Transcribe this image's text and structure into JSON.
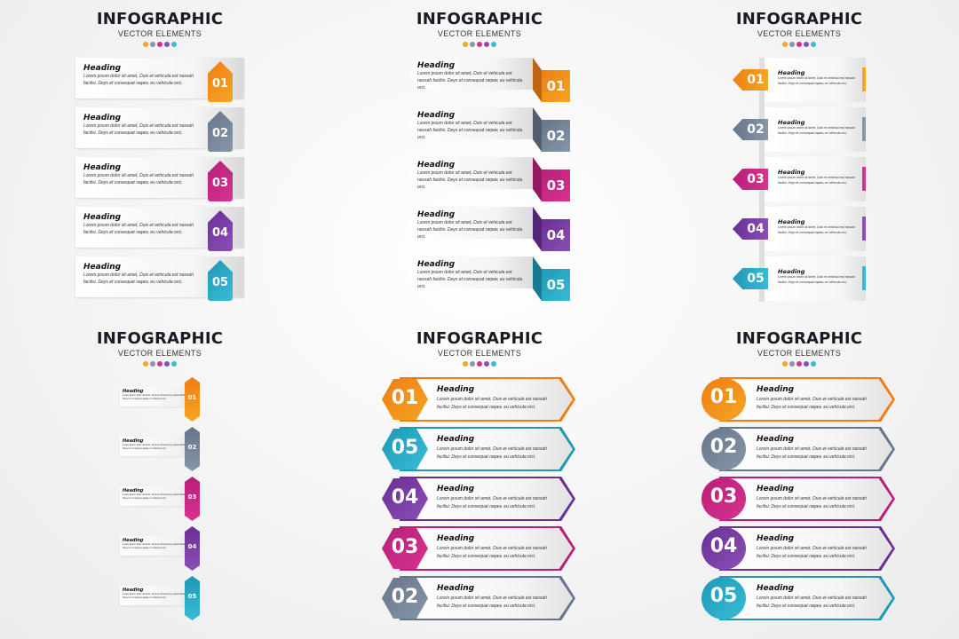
{
  "colors": {
    "orange": "#f5a623",
    "orange_dark": "#ef7d14",
    "gray": "#8896a8",
    "gray_dark": "#66758a",
    "magenta": "#d6338f",
    "magenta_dark": "#b81f78",
    "purple": "#8b4fb4",
    "purple_dark": "#6a2f96",
    "cyan": "#38bcd6",
    "cyan_dark": "#1e98b5"
  },
  "panels": [
    {
      "title": "INFOGRAPHIC",
      "subtitle": "VECTOR ELEMENTS",
      "items": [
        {
          "num": "01",
          "heading": "Heading",
          "body": "Lorem ipsum dolor sit amet, Duis et vehicula est nassah facilisi. Deys et consequat raqaw, eu vehicula orci."
        },
        {
          "num": "02",
          "heading": "Heading",
          "body": "Lorem ipsum dolor sit amet, Duis et vehicula est nassah facilisi. Deys et consequat raqaw, eu vehicula orci."
        },
        {
          "num": "03",
          "heading": "Heading",
          "body": "Lorem ipsum dolor sit amet, Duis et vehicula est nassah facilisi. Deys et consequat raqaw, eu vehicula orci."
        },
        {
          "num": "04",
          "heading": "Heading",
          "body": "Lorem ipsum dolor sit amet, Duis et vehicula est nassah facilisi. Deys et consequat raqaw, eu vehicula orci."
        },
        {
          "num": "05",
          "heading": "Heading",
          "body": "Lorem ipsum dolor sit amet, Duis et vehicula est nassah facilisi. Deys et consequat raqaw, eu vehicula orci."
        }
      ]
    },
    {
      "title": "INFOGRAPHIC",
      "subtitle": "VECTOR ELEMENTS",
      "items": [
        {
          "num": "01",
          "heading": "Heading",
          "body": "Lorem ipsum dolor sit amet, Duis et vehicula est nassah facilisi. Deys et consequat raqaw, eu vehicula orci."
        },
        {
          "num": "02",
          "heading": "Heading",
          "body": "Lorem ipsum dolor sit amet, Duis et vehicula est nassah facilisi. Deys et consequat raqaw, eu vehicula orci."
        },
        {
          "num": "03",
          "heading": "Heading",
          "body": "Lorem ipsum dolor sit amet, Duis et vehicula est nassah facilisi. Deys et consequat raqaw, eu vehicula orci."
        },
        {
          "num": "04",
          "heading": "Heading",
          "body": "Lorem ipsum dolor sit amet, Duis et vehicula est nassah facilisi. Deys et consequat raqaw, eu vehicula orci."
        },
        {
          "num": "05",
          "heading": "Heading",
          "body": "Lorem ipsum dolor sit amet, Duis et vehicula est nassah facilisi. Deys et consequat raqaw, eu vehicula orci."
        }
      ]
    },
    {
      "title": "INFOGRAPHIC",
      "subtitle": "VECTOR ELEMENTS",
      "items": [
        {
          "num": "01",
          "heading": "Heading",
          "body": "Lorem ipsum dolor sit amet, Duis et vehicula est nassah facilisi. Deys et consequat raqaw, eu vehicula orci."
        },
        {
          "num": "02",
          "heading": "Heading",
          "body": "Lorem ipsum dolor sit amet, Duis et vehicula est nassah facilisi. Deys et consequat raqaw, eu vehicula orci."
        },
        {
          "num": "03",
          "heading": "Heading",
          "body": "Lorem ipsum dolor sit amet, Duis et vehicula est nassah facilisi. Deys et consequat raqaw, eu vehicula orci."
        },
        {
          "num": "04",
          "heading": "Heading",
          "body": "Lorem ipsum dolor sit amet, Duis et vehicula est nassah facilisi. Deys et consequat raqaw, eu vehicula orci."
        },
        {
          "num": "05",
          "heading": "Heading",
          "body": "Lorem ipsum dolor sit amet, Duis et vehicula est nassah facilisi. Deys et consequat raqaw, eu vehicula orci."
        }
      ]
    },
    {
      "title": "INFOGRAPHIC",
      "subtitle": "VECTOR ELEMENTS",
      "items": [
        {
          "num": "01",
          "heading": "Heading",
          "body": "Lorem ipsum dolor sit amet, Duis et vehicula est nassah facilisi. Deys et consequat raqaw, eu vehicula orci."
        },
        {
          "num": "02",
          "heading": "Heading",
          "body": "Lorem ipsum dolor sit amet, Duis et vehicula est nassah facilisi. Deys et consequat raqaw, eu vehicula orci."
        },
        {
          "num": "03",
          "heading": "Heading",
          "body": "Lorem ipsum dolor sit amet, Duis et vehicula est nassah facilisi. Deys et consequat raqaw, eu vehicula orci."
        },
        {
          "num": "04",
          "heading": "Heading",
          "body": "Lorem ipsum dolor sit amet, Duis et vehicula est nassah facilisi. Deys et consequat raqaw, eu vehicula orci."
        },
        {
          "num": "05",
          "heading": "Heading",
          "body": "Lorem ipsum dolor sit amet, Duis et vehicula est nassah facilisi. Deys et consequat raqaw, eu vehicula orci."
        }
      ]
    },
    {
      "title": "INFOGRAPHIC",
      "subtitle": "VECTOR ELEMENTS",
      "items": [
        {
          "num": "01",
          "heading": "Heading",
          "body": "Lorem ipsum dolor sit amet, Duis et vehicula est nassah facilisi. Deys et consequat raqaw, eu vehicula orci."
        },
        {
          "num": "05",
          "heading": "Heading",
          "body": "Lorem ipsum dolor sit amet, Duis et vehicula est nassah facilisi. Deys et consequat raqaw, eu vehicula orci."
        },
        {
          "num": "04",
          "heading": "Heading",
          "body": "Lorem ipsum dolor sit amet, Duis et vehicula est nassah facilisi. Deys et consequat raqaw, eu vehicula orci."
        },
        {
          "num": "03",
          "heading": "Heading",
          "body": "Lorem ipsum dolor sit amet, Duis et vehicula est nassah facilisi. Deys et consequat raqaw, eu vehicula orci."
        },
        {
          "num": "02",
          "heading": "Heading",
          "body": "Lorem ipsum dolor sit amet, Duis et vehicula est nassah facilisi. Deys et consequat raqaw, eu vehicula orci."
        }
      ]
    },
    {
      "title": "INFOGRAPHIC",
      "subtitle": "VECTOR ELEMENTS",
      "items": [
        {
          "num": "01",
          "heading": "Heading",
          "body": "Lorem ipsum dolor sit amet, Duis et vehicula est nassah facilisi. Deys et consequat raqaw, eu vehicula orci."
        },
        {
          "num": "02",
          "heading": "Heading",
          "body": "Lorem ipsum dolor sit amet, Duis et vehicula est nassah facilisi. Deys et consequat raqaw, eu vehicula orci."
        },
        {
          "num": "03",
          "heading": "Heading",
          "body": "Lorem ipsum dolor sit amet, Duis et vehicula est nassah facilisi. Deys et consequat raqaw, eu vehicula orci."
        },
        {
          "num": "04",
          "heading": "Heading",
          "body": "Lorem ipsum dolor sit amet, Duis et vehicula est nassah facilisi. Deys et consequat raqaw, eu vehicula orci."
        },
        {
          "num": "05",
          "heading": "Heading",
          "body": "Lorem ipsum dolor sit amet, Duis et vehicula est nassah facilisi. Deys et consequat raqaw, eu vehicula orci."
        }
      ]
    }
  ]
}
